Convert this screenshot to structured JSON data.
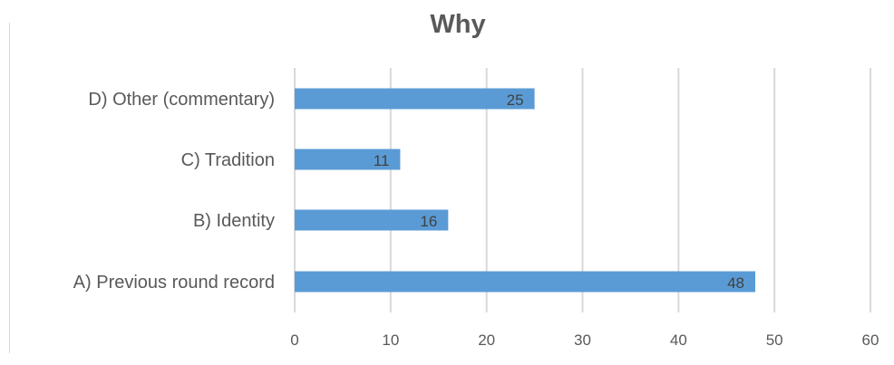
{
  "chart_data": {
    "type": "bar",
    "orientation": "horizontal",
    "title": "Why",
    "categories": [
      "D) Other (commentary)",
      "C) Tradition",
      "B) Identity",
      "A) Previous round record"
    ],
    "values": [
      25,
      11,
      16,
      48
    ],
    "xlim": [
      0,
      60
    ],
    "xticks": [
      0,
      10,
      20,
      30,
      40,
      50,
      60
    ],
    "grid": true,
    "legend": "none",
    "bar_color": "#5b9bd5",
    "data_labels": true
  }
}
